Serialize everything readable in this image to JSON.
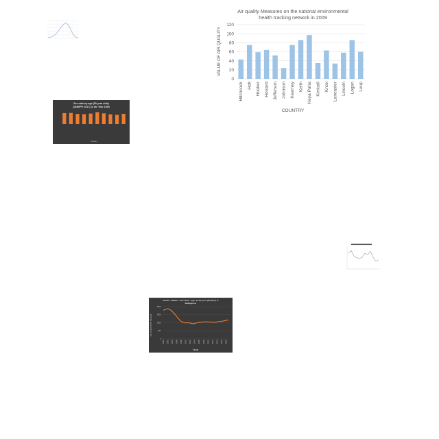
{
  "colors": {
    "main_bar": "#9dc3e6",
    "main_bar_edge": "#7fa9cf",
    "dark_bg": "#3a3a3a",
    "orange": "#ed7d31"
  },
  "chart_data": [
    {
      "type": "bar",
      "title_lines": [
        "Air quality Measures on the national environmental",
        "health tracking network in 2009"
      ],
      "xlabel": "COUNTRY",
      "ylabel": "VALUE OF AIR QUALITY",
      "categories": [
        "Hitchcock",
        "Holt",
        "Hooker",
        "Howard",
        "Jefferson",
        "Johnson",
        "Kearney",
        "Keith",
        "Keya Paha",
        "Kimball",
        "Knox",
        "Lancaster",
        "Lincoln",
        "Logan",
        "Loup"
      ],
      "values": [
        43,
        75,
        59,
        64,
        52,
        24,
        75,
        86,
        97,
        35,
        63,
        34,
        58,
        86,
        60
      ],
      "ylim": [
        0,
        120
      ],
      "yticks": [
        "0",
        "20",
        "40",
        "60",
        "80",
        "100",
        "120"
      ],
      "grid": true
    },
    {
      "type": "line",
      "title": "",
      "xlabel": "",
      "ylabel": "",
      "values": [
        2,
        3,
        4,
        6,
        9,
        13,
        18,
        24,
        30,
        36,
        40,
        43,
        41,
        36,
        28,
        18,
        10,
        5,
        3,
        2
      ],
      "ylim": [
        0,
        50
      ],
      "grid": true
    },
    {
      "type": "bar",
      "title_lines": [
        "Sex ratio by age (50 year olds)",
        "(UNWPP, 2017) in the Year 1965"
      ],
      "xlabel": "Country",
      "ylabel": "",
      "values": [
        92,
        93,
        85,
        83,
        88,
        100,
        90,
        82,
        78,
        86
      ],
      "ylim": [
        0,
        120
      ],
      "grid": false
    },
    {
      "type": "line",
      "title": "",
      "xlabel": "",
      "ylabel": "",
      "values": [
        70,
        82,
        55,
        48,
        44,
        50,
        70,
        62,
        78,
        50,
        30,
        38
      ],
      "ylim": [
        0,
        100
      ],
      "grid": false
    },
    {
      "type": "line",
      "title_lines": [
        "Deaths - Malaria - Sex: Both - Age: 15-49 years (Number) in",
        "Madagascar"
      ],
      "xlabel": "YEAR",
      "ylabel": "NO OF DEATHS BY MALARIA",
      "x": [
        "1990",
        "1991",
        "1992",
        "1993",
        "1994",
        "1995",
        "1996",
        "1997",
        "1998",
        "1999",
        "2000",
        "2001",
        "2002",
        "2003",
        "2004",
        "2005",
        "2006",
        "2007",
        "2008",
        "2009",
        "2010",
        "2011",
        "2012",
        "2013",
        "2014",
        "2015",
        "2016",
        "2017",
        "2018",
        "2019"
      ],
      "xticks": [
        "1990",
        "1992",
        "1994",
        "1996",
        "1998",
        "2000",
        "2002",
        "2004",
        "2006",
        "2008",
        "2010",
        "2012",
        "2014",
        "2016",
        "2018"
      ],
      "values": [
        1780,
        1830,
        1870,
        1820,
        1700,
        1560,
        1380,
        1220,
        1080,
        1010,
        990,
        1000,
        980,
        940,
        960,
        990,
        1020,
        1040,
        1050,
        1050,
        1050,
        1040,
        1030,
        1030,
        1050,
        1070,
        1090,
        1120,
        1150,
        1170
      ],
      "ylim": [
        0,
        2000
      ],
      "yticks": [
        "0",
        "500",
        "1000",
        "1500",
        "2000"
      ],
      "grid": true
    }
  ]
}
